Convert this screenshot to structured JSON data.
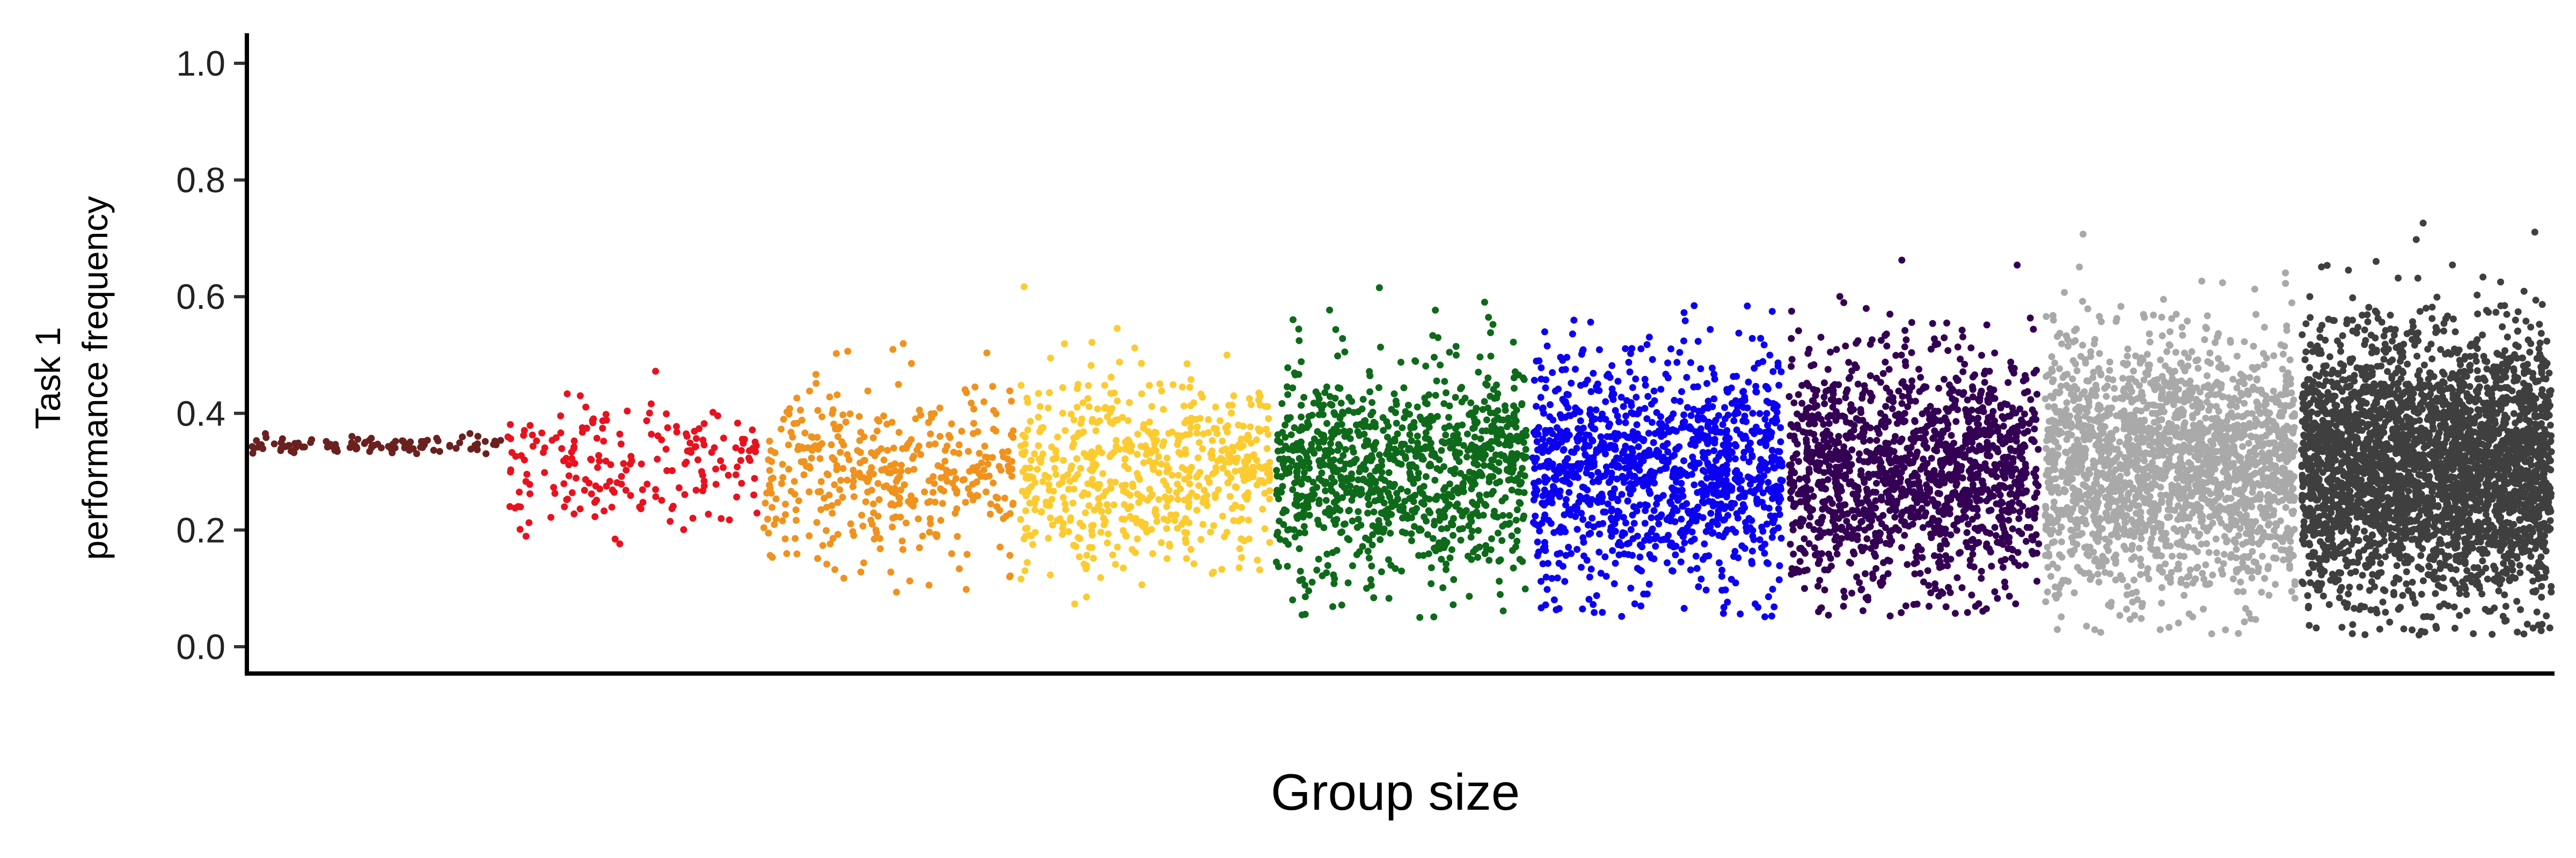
{
  "chart_data": {
    "type": "scatter",
    "title": "",
    "xlabel": "Group size",
    "ylabel": [
      "Task 1",
      "performance frequency"
    ],
    "ylim": [
      0,
      1.05
    ],
    "yticks": [
      0.0,
      0.2,
      0.4,
      0.6,
      0.8,
      1.0
    ],
    "ytick_labels": [
      "0.0",
      "0.2",
      "0.4",
      "0.6",
      "0.8",
      "1.0"
    ],
    "x_ticks_shown": false,
    "grid": false,
    "legend": "none",
    "point_style": "jittered strip per group",
    "series": [
      {
        "color": "#6B2020",
        "n_points": 100,
        "mean": 0.345,
        "sd": 0.008,
        "min": 0.33,
        "max": 0.37
      },
      {
        "color": "#E8121F",
        "n_points": 200,
        "mean": 0.31,
        "sd": 0.06,
        "min": 0.12,
        "max": 0.49
      },
      {
        "color": "#F0921E",
        "n_points": 400,
        "mean": 0.3,
        "sd": 0.08,
        "min": 0.07,
        "max": 0.55
      },
      {
        "color": "#FCCB30",
        "n_points": 600,
        "mean": 0.3,
        "sd": 0.085,
        "min": 0.06,
        "max": 0.62
      },
      {
        "color": "#0E6A1A",
        "n_points": 1000,
        "mean": 0.3,
        "sd": 0.095,
        "min": 0.05,
        "max": 0.65
      },
      {
        "color": "#0C00F2",
        "n_points": 1200,
        "mean": 0.3,
        "sd": 0.1,
        "min": 0.05,
        "max": 0.66
      },
      {
        "color": "#330054",
        "n_points": 1400,
        "mean": 0.3,
        "sd": 0.1,
        "min": 0.05,
        "max": 0.67
      },
      {
        "color": "#A9A9A9",
        "n_points": 2000,
        "mean": 0.31,
        "sd": 0.11,
        "min": 0.02,
        "max": 0.72
      },
      {
        "color": "#3F3F3F",
        "n_points": 3200,
        "mean": 0.31,
        "sd": 0.11,
        "min": 0.02,
        "max": 0.76
      }
    ]
  }
}
